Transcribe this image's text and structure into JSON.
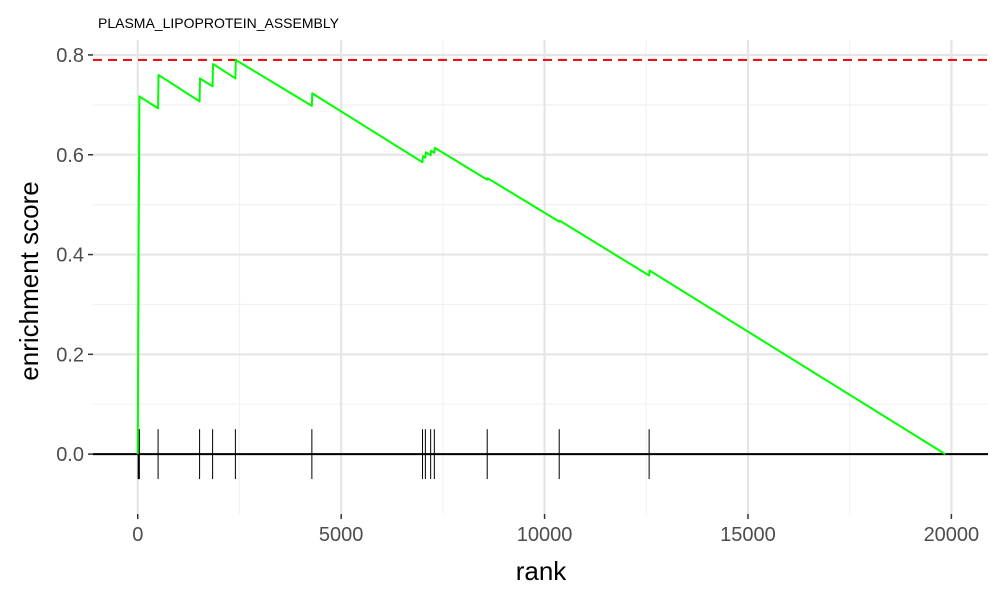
{
  "chart_data": {
    "type": "line",
    "title": "PLASMA_LIPOPROTEIN_ASSEMBLY",
    "xlabel": "rank",
    "ylabel": "enrichment score",
    "xlim": [
      -1100,
      20900
    ],
    "ylim": [
      -0.12,
      0.83
    ],
    "x_ticks": [
      0,
      5000,
      10000,
      15000,
      20000
    ],
    "x_tick_labels": [
      "0",
      "5000",
      "10000",
      "15000",
      "20000"
    ],
    "y_ticks": [
      0.0,
      0.2,
      0.4,
      0.6,
      0.8
    ],
    "y_tick_labels": [
      "0.0",
      "0.2",
      "0.4",
      "0.6",
      "0.8"
    ],
    "grid": true,
    "series": [
      {
        "color": "#00ff00",
        "points": [
          [
            0,
            0.0
          ],
          [
            10,
            0.21
          ],
          [
            20,
            0.39
          ],
          [
            30,
            0.555
          ],
          [
            40,
            0.717
          ],
          [
            500,
            0.693
          ],
          [
            510,
            0.76
          ],
          [
            1520,
            0.707
          ],
          [
            1530,
            0.753
          ],
          [
            1840,
            0.737
          ],
          [
            1850,
            0.782
          ],
          [
            2400,
            0.753
          ],
          [
            2410,
            0.79
          ],
          [
            4280,
            0.698
          ],
          [
            4290,
            0.723
          ],
          [
            7000,
            0.585
          ],
          [
            7010,
            0.597
          ],
          [
            7070,
            0.594
          ],
          [
            7080,
            0.605
          ],
          [
            7200,
            0.599
          ],
          [
            7210,
            0.608
          ],
          [
            7290,
            0.604
          ],
          [
            7300,
            0.614
          ],
          [
            8590,
            0.55
          ],
          [
            8600,
            0.553
          ],
          [
            10360,
            0.466
          ],
          [
            10370,
            0.468
          ],
          [
            12570,
            0.358
          ],
          [
            12580,
            0.368
          ],
          [
            19850,
            0.0
          ]
        ]
      }
    ],
    "reference_line": {
      "y": 0.79,
      "color": "#ee1111",
      "style": "dashed"
    },
    "zero_line": {
      "y": 0.0,
      "color": "#000000"
    },
    "hit_ranks": [
      10,
      20,
      30,
      40,
      500,
      1520,
      1840,
      2400,
      4280,
      7000,
      7070,
      7200,
      7290,
      8590,
      10360,
      12570
    ],
    "hit_mark_half_height": 0.05
  }
}
